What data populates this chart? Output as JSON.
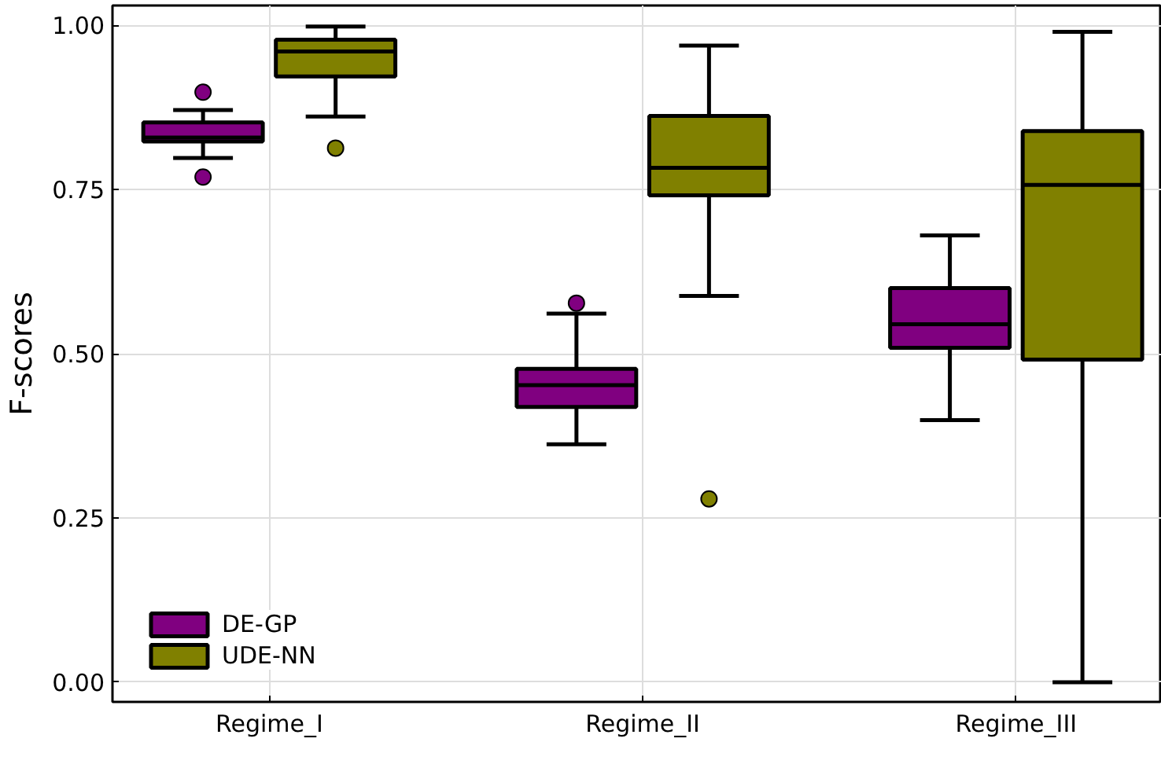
{
  "chart_data": {
    "type": "box",
    "ylabel": "F-scores",
    "categories": [
      "Regime_I",
      "Regime_II",
      "Regime_III"
    ],
    "ylim": [
      -0.03,
      1.03
    ],
    "yticks": [
      {
        "value": 0,
        "label": "0.00"
      },
      {
        "value": 0.25,
        "label": "0.25"
      },
      {
        "value": 0.5,
        "label": "0.50"
      },
      {
        "value": 0.75,
        "label": "0.75"
      },
      {
        "value": 1,
        "label": "1.00"
      }
    ],
    "grid": true,
    "legend": "bottom left",
    "series": [
      {
        "name": "DE-GP",
        "color": "#800080",
        "boxes": [
          {
            "low": 0.798,
            "q1": 0.823,
            "median": 0.829,
            "q3": 0.852,
            "high": 0.871,
            "outliers": [
              0.898,
              0.769
            ]
          },
          {
            "low": 0.362,
            "q1": 0.419,
            "median": 0.452,
            "q3": 0.477,
            "high": 0.561,
            "outliers": [
              0.577
            ]
          },
          {
            "low": 0.399,
            "q1": 0.509,
            "median": 0.545,
            "q3": 0.6,
            "high": 0.68
          }
        ]
      },
      {
        "name": "UDE-NN",
        "color": "#808000",
        "boxes": [
          {
            "low": 0.861,
            "q1": 0.922,
            "median": 0.96,
            "q3": 0.978,
            "high": 0.998,
            "outliers": [
              0.813
            ]
          },
          {
            "low": 0.588,
            "q1": 0.741,
            "median": 0.783,
            "q3": 0.862,
            "high": 0.969,
            "outliers": [
              0.279
            ]
          },
          {
            "low": 0.0,
            "q1": 0.491,
            "median": 0.757,
            "q3": 0.839,
            "high": 0.99
          }
        ]
      }
    ]
  }
}
